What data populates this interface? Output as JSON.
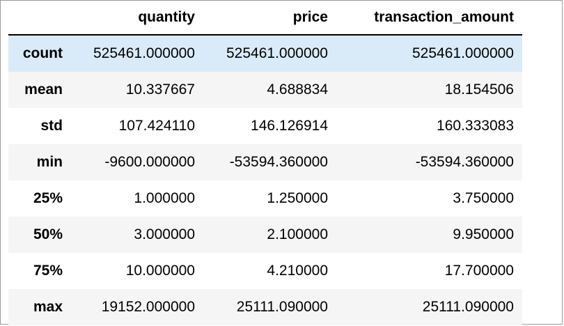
{
  "table": {
    "columns": [
      "",
      "quantity",
      "price",
      "transaction_amount"
    ],
    "rows": [
      {
        "label": "count",
        "values": [
          "525461.000000",
          "525461.000000",
          "525461.000000"
        ]
      },
      {
        "label": "mean",
        "values": [
          "10.337667",
          "4.688834",
          "18.154506"
        ]
      },
      {
        "label": "std",
        "values": [
          "107.424110",
          "146.126914",
          "160.333083"
        ]
      },
      {
        "label": "min",
        "values": [
          "-9600.000000",
          "-53594.360000",
          "-53594.360000"
        ]
      },
      {
        "label": "25%",
        "values": [
          "1.000000",
          "1.250000",
          "3.750000"
        ]
      },
      {
        "label": "50%",
        "values": [
          "3.000000",
          "2.100000",
          "9.950000"
        ]
      },
      {
        "label": "75%",
        "values": [
          "10.000000",
          "4.210000",
          "17.700000"
        ]
      },
      {
        "label": "max",
        "values": [
          "19152.000000",
          "25111.090000",
          "25111.090000"
        ]
      }
    ],
    "highlight_color": "#d9ebf9"
  }
}
